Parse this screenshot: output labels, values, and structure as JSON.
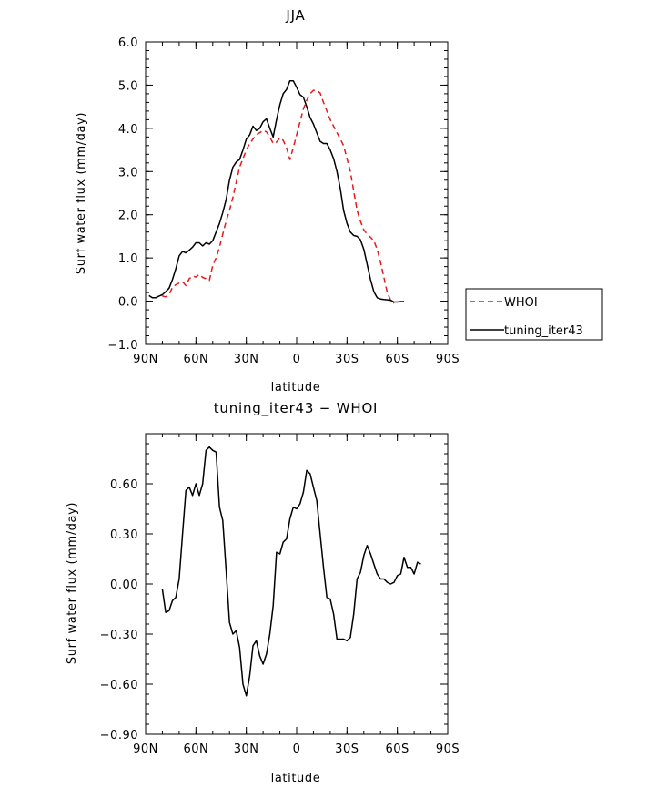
{
  "chart_data": [
    {
      "type": "line",
      "title": "JJA",
      "xlabel": "latitude",
      "ylabel": "Surf water flux (mm/day)",
      "xlim": [
        90,
        -90
      ],
      "ylim": [
        -1.0,
        6.0
      ],
      "xticks": [
        {
          "v": 90,
          "label": "90N"
        },
        {
          "v": 60,
          "label": "60N"
        },
        {
          "v": 30,
          "label": "30N"
        },
        {
          "v": 0,
          "label": "0"
        },
        {
          "v": -30,
          "label": "30S"
        },
        {
          "v": -60,
          "label": "60S"
        },
        {
          "v": -90,
          "label": "90S"
        }
      ],
      "yticks": [
        {
          "v": -1.0,
          "label": "−1.0"
        },
        {
          "v": 0.0,
          "label": "0.0"
        },
        {
          "v": 1.0,
          "label": "1.0"
        },
        {
          "v": 2.0,
          "label": "2.0"
        },
        {
          "v": 3.0,
          "label": "3.0"
        },
        {
          "v": 4.0,
          "label": "4.0"
        },
        {
          "v": 5.0,
          "label": "5.0"
        },
        {
          "v": 6.0,
          "label": "6.0"
        }
      ],
      "legend": {
        "placement": "right"
      },
      "series": [
        {
          "name": "WHOI",
          "color": "#e41a1c",
          "dash": true,
          "points": [
            [
              80,
              0.12
            ],
            [
              78,
              0.1
            ],
            [
              76,
              0.15
            ],
            [
              74,
              0.32
            ],
            [
              72,
              0.38
            ],
            [
              70,
              0.42
            ],
            [
              68,
              0.45
            ],
            [
              66,
              0.36
            ],
            [
              64,
              0.52
            ],
            [
              62,
              0.58
            ],
            [
              60,
              0.56
            ],
            [
              58,
              0.62
            ],
            [
              56,
              0.55
            ],
            [
              54,
              0.52
            ],
            [
              52,
              0.48
            ],
            [
              50,
              0.83
            ],
            [
              48,
              1.0
            ],
            [
              46,
              1.25
            ],
            [
              44,
              1.55
            ],
            [
              42,
              1.85
            ],
            [
              40,
              2.1
            ],
            [
              38,
              2.4
            ],
            [
              36,
              2.75
            ],
            [
              34,
              3.1
            ],
            [
              32,
              3.3
            ],
            [
              30,
              3.5
            ],
            [
              28,
              3.65
            ],
            [
              26,
              3.75
            ],
            [
              24,
              3.85
            ],
            [
              22,
              3.9
            ],
            [
              20,
              3.95
            ],
            [
              18,
              3.92
            ],
            [
              16,
              3.8
            ],
            [
              14,
              3.65
            ],
            [
              12,
              3.68
            ],
            [
              10,
              3.78
            ],
            [
              8,
              3.72
            ],
            [
              6,
              3.55
            ],
            [
              4,
              3.28
            ],
            [
              2,
              3.55
            ],
            [
              0,
              3.85
            ],
            [
              -2,
              4.15
            ],
            [
              -4,
              4.45
            ],
            [
              -6,
              4.65
            ],
            [
              -8,
              4.8
            ],
            [
              -10,
              4.88
            ],
            [
              -12,
              4.88
            ],
            [
              -14,
              4.82
            ],
            [
              -16,
              4.6
            ],
            [
              -18,
              4.4
            ],
            [
              -20,
              4.2
            ],
            [
              -22,
              4.05
            ],
            [
              -24,
              3.9
            ],
            [
              -26,
              3.75
            ],
            [
              -28,
              3.6
            ],
            [
              -30,
              3.3
            ],
            [
              -32,
              3.0
            ],
            [
              -34,
              2.55
            ],
            [
              -36,
              2.1
            ],
            [
              -38,
              1.85
            ],
            [
              -40,
              1.65
            ],
            [
              -42,
              1.55
            ],
            [
              -44,
              1.48
            ],
            [
              -46,
              1.4
            ],
            [
              -48,
              1.2
            ],
            [
              -50,
              0.9
            ],
            [
              -52,
              0.55
            ],
            [
              -54,
              0.2
            ],
            [
              -56,
              0.02
            ],
            [
              -58,
              -0.05
            ]
          ]
        },
        {
          "name": "tuning_iter43",
          "color": "#000000",
          "dash": false,
          "points": [
            [
              88,
              0.13
            ],
            [
              86,
              0.08
            ],
            [
              84,
              0.08
            ],
            [
              82,
              0.12
            ],
            [
              80,
              0.15
            ],
            [
              78,
              0.22
            ],
            [
              76,
              0.3
            ],
            [
              74,
              0.5
            ],
            [
              72,
              0.75
            ],
            [
              70,
              1.05
            ],
            [
              68,
              1.15
            ],
            [
              66,
              1.12
            ],
            [
              64,
              1.18
            ],
            [
              62,
              1.25
            ],
            [
              60,
              1.35
            ],
            [
              58,
              1.35
            ],
            [
              56,
              1.28
            ],
            [
              54,
              1.35
            ],
            [
              52,
              1.32
            ],
            [
              50,
              1.4
            ],
            [
              48,
              1.6
            ],
            [
              46,
              1.8
            ],
            [
              44,
              2.05
            ],
            [
              42,
              2.35
            ],
            [
              40,
              2.8
            ],
            [
              38,
              3.1
            ],
            [
              36,
              3.22
            ],
            [
              34,
              3.28
            ],
            [
              32,
              3.5
            ],
            [
              30,
              3.75
            ],
            [
              28,
              3.85
            ],
            [
              26,
              4.05
            ],
            [
              24,
              3.95
            ],
            [
              22,
              4.0
            ],
            [
              20,
              4.15
            ],
            [
              18,
              4.22
            ],
            [
              16,
              4.0
            ],
            [
              14,
              3.8
            ],
            [
              12,
              4.2
            ],
            [
              10,
              4.55
            ],
            [
              8,
              4.8
            ],
            [
              6,
              4.9
            ],
            [
              4,
              5.1
            ],
            [
              2,
              5.1
            ],
            [
              0,
              4.95
            ],
            [
              -2,
              4.78
            ],
            [
              -4,
              4.72
            ],
            [
              -6,
              4.5
            ],
            [
              -8,
              4.25
            ],
            [
              -10,
              4.1
            ],
            [
              -12,
              3.9
            ],
            [
              -14,
              3.7
            ],
            [
              -16,
              3.65
            ],
            [
              -18,
              3.65
            ],
            [
              -20,
              3.5
            ],
            [
              -22,
              3.3
            ],
            [
              -24,
              3.0
            ],
            [
              -26,
              2.6
            ],
            [
              -28,
              2.1
            ],
            [
              -30,
              1.8
            ],
            [
              -32,
              1.6
            ],
            [
              -34,
              1.52
            ],
            [
              -36,
              1.5
            ],
            [
              -38,
              1.42
            ],
            [
              -40,
              1.2
            ],
            [
              -42,
              0.85
            ],
            [
              -44,
              0.5
            ],
            [
              -46,
              0.22
            ],
            [
              -48,
              0.08
            ],
            [
              -50,
              0.05
            ],
            [
              -52,
              0.04
            ],
            [
              -54,
              0.03
            ],
            [
              -56,
              0.02
            ],
            [
              -58,
              -0.02
            ],
            [
              -60,
              -0.02
            ],
            [
              -62,
              -0.01
            ],
            [
              -64,
              -0.01
            ]
          ]
        }
      ]
    },
    {
      "type": "line",
      "title": "tuning_iter43 − WHOI",
      "xlabel": "latitude",
      "ylabel": "Surf water flux (mm/day)",
      "xlim": [
        90,
        -90
      ],
      "ylim": [
        -0.9,
        0.9
      ],
      "xticks": [
        {
          "v": 90,
          "label": "90N"
        },
        {
          "v": 60,
          "label": "60N"
        },
        {
          "v": 30,
          "label": "30N"
        },
        {
          "v": 0,
          "label": "0"
        },
        {
          "v": -30,
          "label": "30S"
        },
        {
          "v": -60,
          "label": "60S"
        },
        {
          "v": -90,
          "label": "90S"
        }
      ],
      "yticks": [
        {
          "v": -0.9,
          "label": "−0.90"
        },
        {
          "v": -0.6,
          "label": "−0.60"
        },
        {
          "v": -0.3,
          "label": "−0.30"
        },
        {
          "v": 0.0,
          "label": "0.00"
        },
        {
          "v": 0.3,
          "label": "0.30"
        },
        {
          "v": 0.6,
          "label": "0.60"
        }
      ],
      "series": [
        {
          "name": "",
          "color": "#000000",
          "dash": false,
          "points": [
            [
              80,
              -0.03
            ],
            [
              78,
              -0.17
            ],
            [
              76,
              -0.16
            ],
            [
              74,
              -0.1
            ],
            [
              72,
              -0.08
            ],
            [
              70,
              0.03
            ],
            [
              68,
              0.3
            ],
            [
              66,
              0.56
            ],
            [
              64,
              0.58
            ],
            [
              62,
              0.53
            ],
            [
              60,
              0.6
            ],
            [
              58,
              0.53
            ],
            [
              56,
              0.6
            ],
            [
              54,
              0.8
            ],
            [
              52,
              0.82
            ],
            [
              50,
              0.8
            ],
            [
              48,
              0.79
            ],
            [
              46,
              0.46
            ],
            [
              44,
              0.38
            ],
            [
              42,
              0.08
            ],
            [
              40,
              -0.23
            ],
            [
              38,
              -0.3
            ],
            [
              36,
              -0.28
            ],
            [
              34,
              -0.38
            ],
            [
              32,
              -0.6
            ],
            [
              30,
              -0.67
            ],
            [
              28,
              -0.55
            ],
            [
              26,
              -0.37
            ],
            [
              24,
              -0.34
            ],
            [
              22,
              -0.43
            ],
            [
              20,
              -0.48
            ],
            [
              18,
              -0.42
            ],
            [
              16,
              -0.3
            ],
            [
              14,
              -0.13
            ],
            [
              12,
              0.19
            ],
            [
              10,
              0.18
            ],
            [
              8,
              0.25
            ],
            [
              6,
              0.27
            ],
            [
              4,
              0.39
            ],
            [
              2,
              0.46
            ],
            [
              0,
              0.45
            ],
            [
              -2,
              0.48
            ],
            [
              -4,
              0.55
            ],
            [
              -6,
              0.68
            ],
            [
              -8,
              0.66
            ],
            [
              -10,
              0.58
            ],
            [
              -12,
              0.5
            ],
            [
              -14,
              0.3
            ],
            [
              -16,
              0.1
            ],
            [
              -18,
              -0.08
            ],
            [
              -20,
              -0.09
            ],
            [
              -22,
              -0.18
            ],
            [
              -24,
              -0.33
            ],
            [
              -26,
              -0.33
            ],
            [
              -28,
              -0.33
            ],
            [
              -30,
              -0.34
            ],
            [
              -32,
              -0.32
            ],
            [
              -34,
              -0.18
            ],
            [
              -36,
              0.03
            ],
            [
              -38,
              0.07
            ],
            [
              -40,
              0.17
            ],
            [
              -42,
              0.23
            ],
            [
              -44,
              0.18
            ],
            [
              -46,
              0.12
            ],
            [
              -48,
              0.06
            ],
            [
              -50,
              0.03
            ],
            [
              -52,
              0.03
            ],
            [
              -54,
              0.01
            ],
            [
              -56,
              0.0
            ],
            [
              -58,
              0.01
            ],
            [
              -60,
              0.05
            ],
            [
              -62,
              0.06
            ],
            [
              -64,
              0.16
            ],
            [
              -66,
              0.1
            ],
            [
              -68,
              0.1
            ],
            [
              -70,
              0.06
            ],
            [
              -72,
              0.13
            ],
            [
              -74,
              0.12
            ]
          ]
        }
      ]
    }
  ]
}
